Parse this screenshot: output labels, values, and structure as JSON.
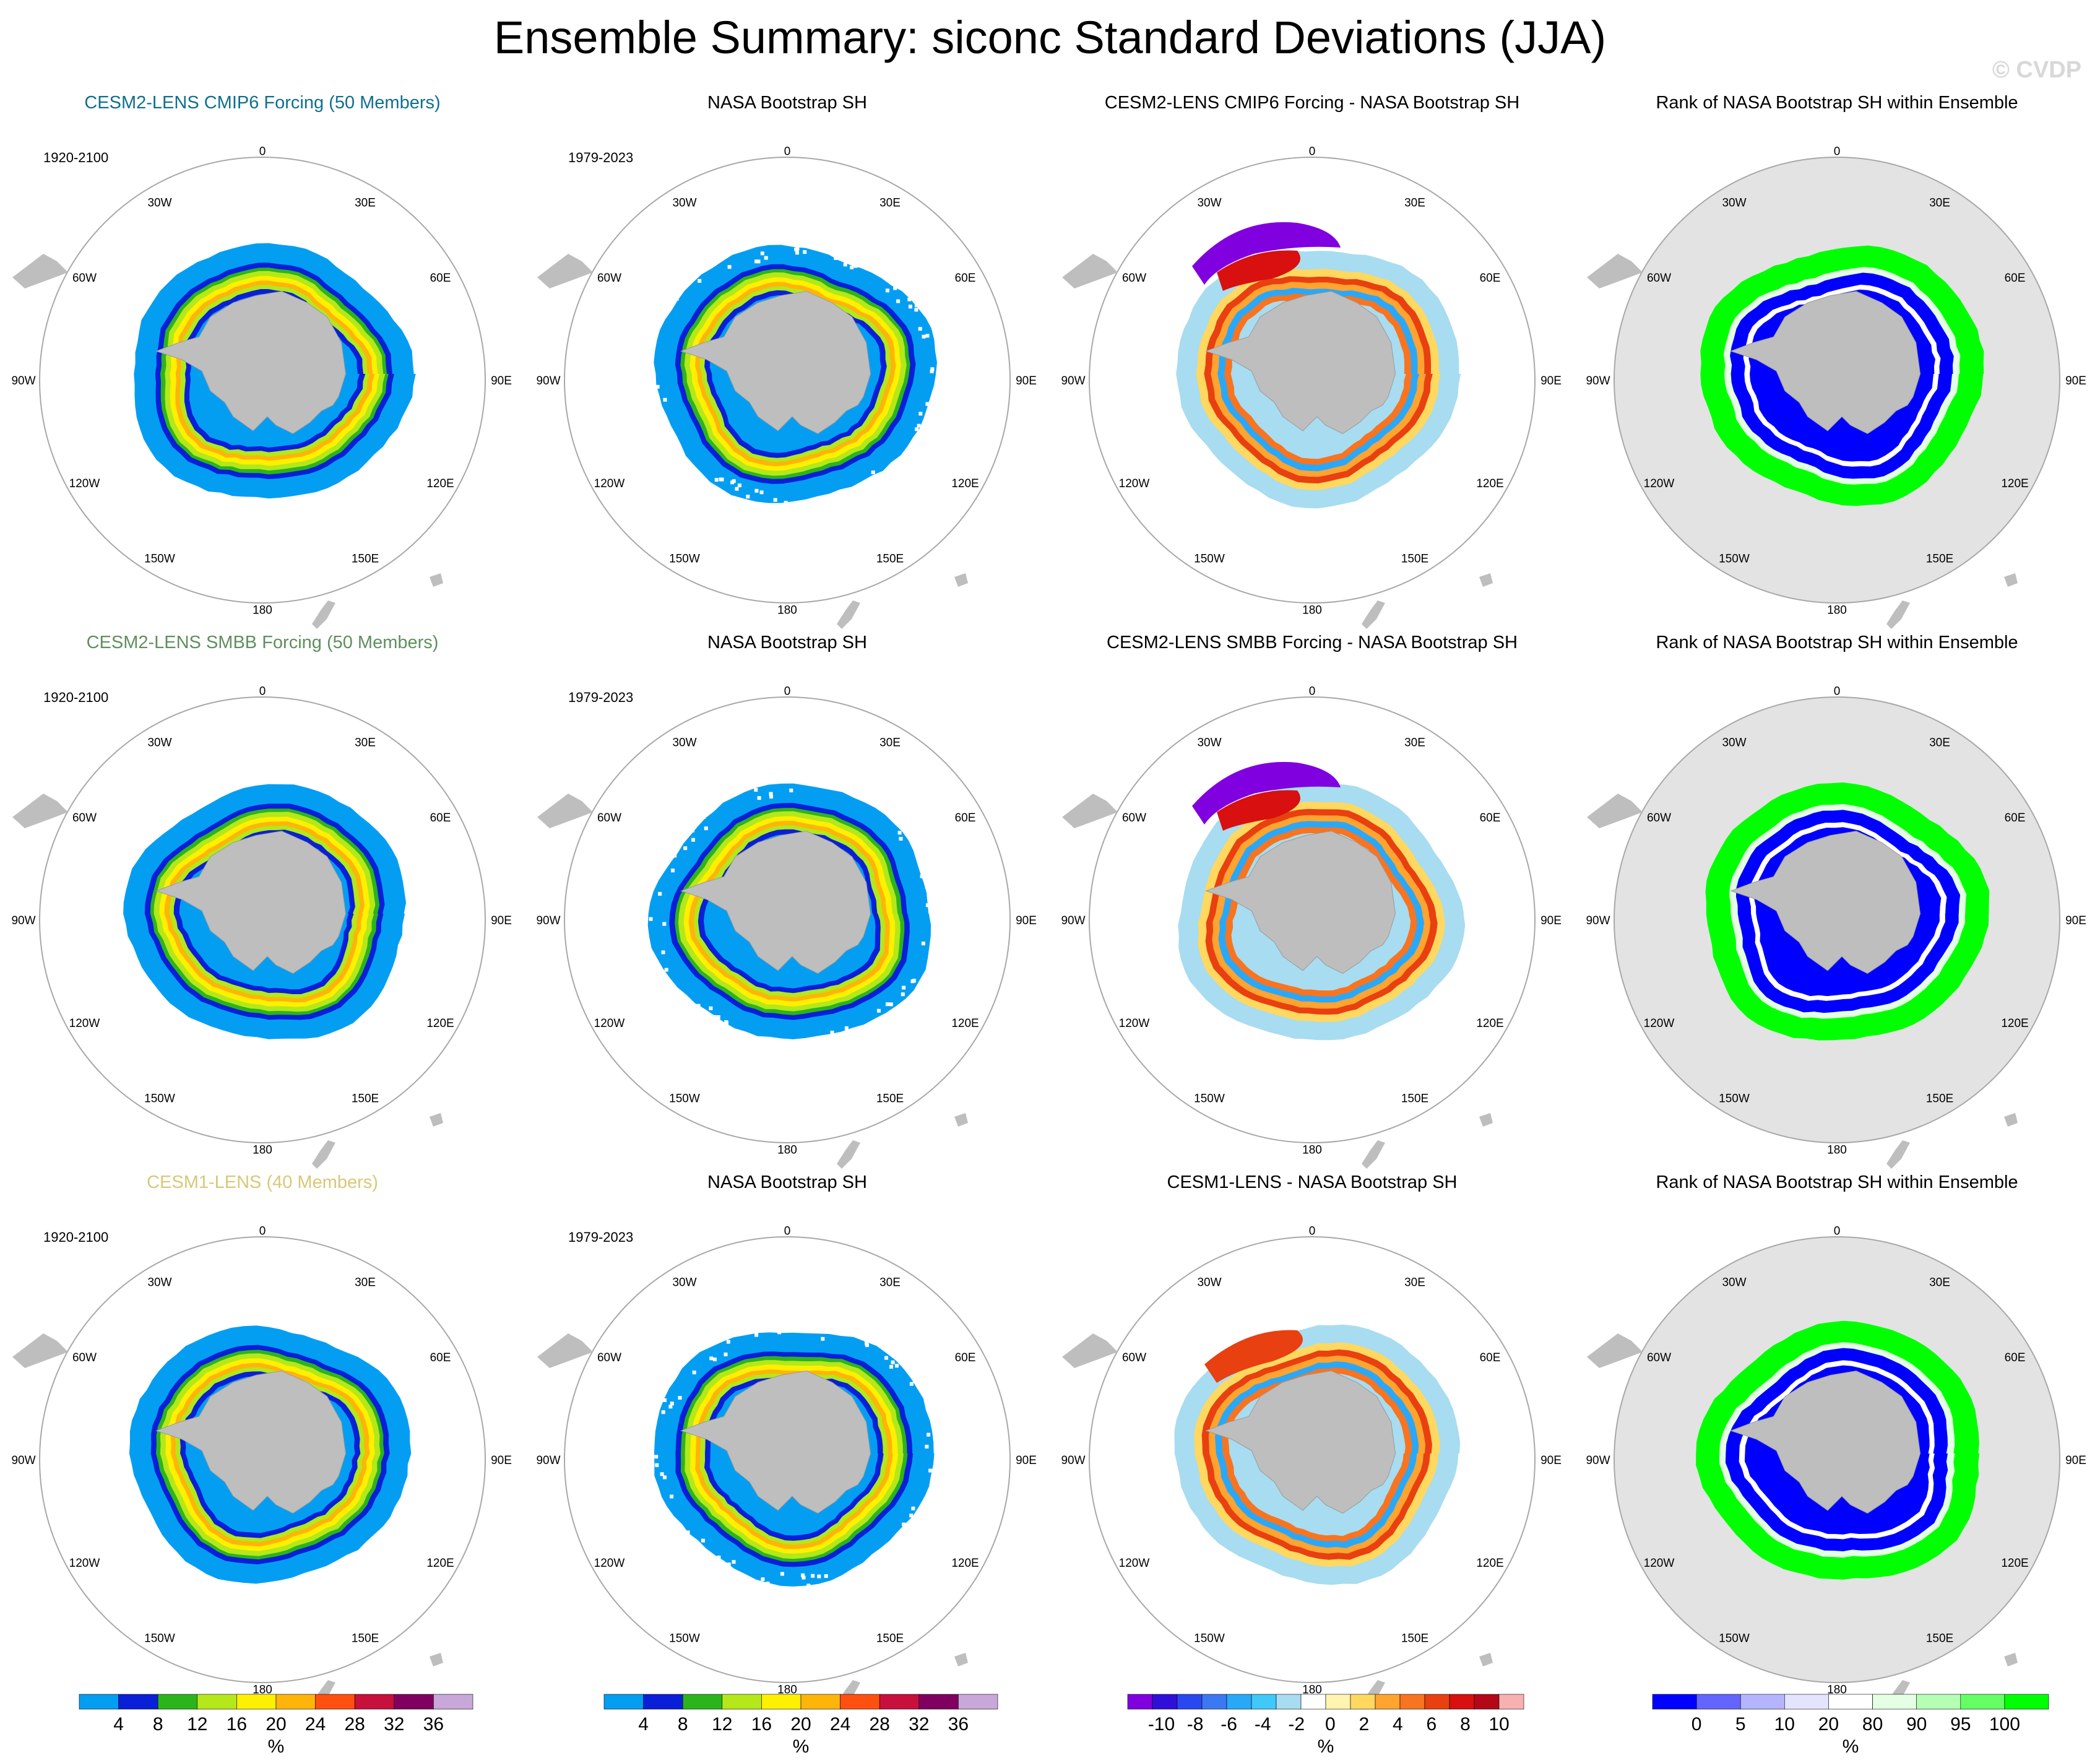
{
  "title": "Ensemble Summary: siconc Standard Deviations (JJA)",
  "watermark": "© CVDP",
  "colors": {
    "land": "#bebebe",
    "circle": "#a8a8a8",
    "rank_background": "#e3e3e3",
    "ens1_title": "#0f6f8f",
    "ens2_title": "#5f8f5f",
    "ens3_title": "#d8c878"
  },
  "lon_labels": [
    "0",
    "30E",
    "60E",
    "90E",
    "120E",
    "150E",
    "180",
    "150W",
    "120W",
    "90W",
    "60W",
    "30W"
  ],
  "colorbars": [
    {
      "name": "stddev",
      "colors": [
        "#039ef2",
        "#0a1fd8",
        "#2cb41c",
        "#b4e81a",
        "#fff000",
        "#ffb40a",
        "#ff5010",
        "#c8103c",
        "#800060",
        "#c8a8d8"
      ],
      "labels": [
        "4",
        "8",
        "12",
        "16",
        "20",
        "24",
        "28",
        "32",
        "36"
      ],
      "units": "%"
    },
    {
      "name": "difference",
      "colors": [
        "#8000e0",
        "#3010d8",
        "#2a48f0",
        "#3c78f4",
        "#2aa8f8",
        "#40c8f8",
        "#a8dcf0",
        "#ffffff",
        "#fff4b0",
        "#ffd860",
        "#ffa430",
        "#f87420",
        "#e84010",
        "#d81010",
        "#b40818",
        "#f8b0b0"
      ],
      "labels": [
        "-10",
        "-8",
        "-6",
        "-4",
        "-2",
        "0",
        "2",
        "4",
        "6",
        "8",
        "10"
      ],
      "units": "%"
    },
    {
      "name": "rank",
      "colors": [
        "#0000ff",
        "#6464ff",
        "#b4b4ff",
        "#e4e4ff",
        "#ffffff",
        "#e4ffe4",
        "#b4ffb4",
        "#64ff64",
        "#00ff00"
      ],
      "labels": [
        "0",
        "5",
        "10",
        "20",
        "80",
        "90",
        "95",
        "100"
      ],
      "units": "%"
    }
  ],
  "rows": [
    {
      "panels": [
        {
          "title": "CESM2-LENS CMIP6 Forcing (50 Members)",
          "period": "1920-2100",
          "kind": "ensemble",
          "title_color": "#0f6f8f"
        },
        {
          "title": "NASA Bootstrap SH",
          "period": "1979-2023",
          "kind": "observed",
          "title_color": "#000000"
        },
        {
          "title": "CESM2-LENS CMIP6 Forcing - NASA Bootstrap SH",
          "period": "",
          "kind": "difference",
          "title_color": "#000000"
        },
        {
          "title": "Rank of NASA Bootstrap SH within Ensemble",
          "period": "",
          "kind": "rank",
          "title_color": "#000000"
        }
      ]
    },
    {
      "panels": [
        {
          "title": "CESM2-LENS SMBB Forcing (50 Members)",
          "period": "1920-2100",
          "kind": "ensemble",
          "title_color": "#5f8f5f"
        },
        {
          "title": "NASA Bootstrap SH",
          "period": "1979-2023",
          "kind": "observed",
          "title_color": "#000000"
        },
        {
          "title": "CESM2-LENS SMBB Forcing - NASA Bootstrap SH",
          "period": "",
          "kind": "difference",
          "title_color": "#000000"
        },
        {
          "title": "Rank of NASA Bootstrap SH within Ensemble",
          "period": "",
          "kind": "rank",
          "title_color": "#000000"
        }
      ]
    },
    {
      "panels": [
        {
          "title": "CESM1-LENS (40 Members)",
          "period": "1920-2100",
          "kind": "ensemble",
          "title_color": "#d8c878"
        },
        {
          "title": "NASA Bootstrap SH",
          "period": "1979-2023",
          "kind": "observed",
          "title_color": "#000000"
        },
        {
          "title": "CESM1-LENS - NASA Bootstrap SH",
          "period": "",
          "kind": "difference",
          "title_color": "#000000"
        },
        {
          "title": "Rank of NASA Bootstrap SH within Ensemble",
          "period": "",
          "kind": "rank",
          "title_color": "#000000"
        }
      ]
    }
  ],
  "chart_data": {
    "type": "heatmap",
    "projection": "south polar stereographic",
    "variable": "siconc",
    "statistic": "standard deviation",
    "season": "JJA",
    "units": "%",
    "grid": "12 panels (3 rows × 4 columns)",
    "stddev_scale": [
      4,
      8,
      12,
      16,
      20,
      24,
      28,
      32,
      36
    ],
    "difference_scale": [
      -10,
      -8,
      -6,
      -4,
      -2,
      0,
      2,
      4,
      6,
      8,
      10
    ],
    "rank_scale": [
      0,
      5,
      10,
      20,
      80,
      90,
      95,
      100
    ]
  }
}
